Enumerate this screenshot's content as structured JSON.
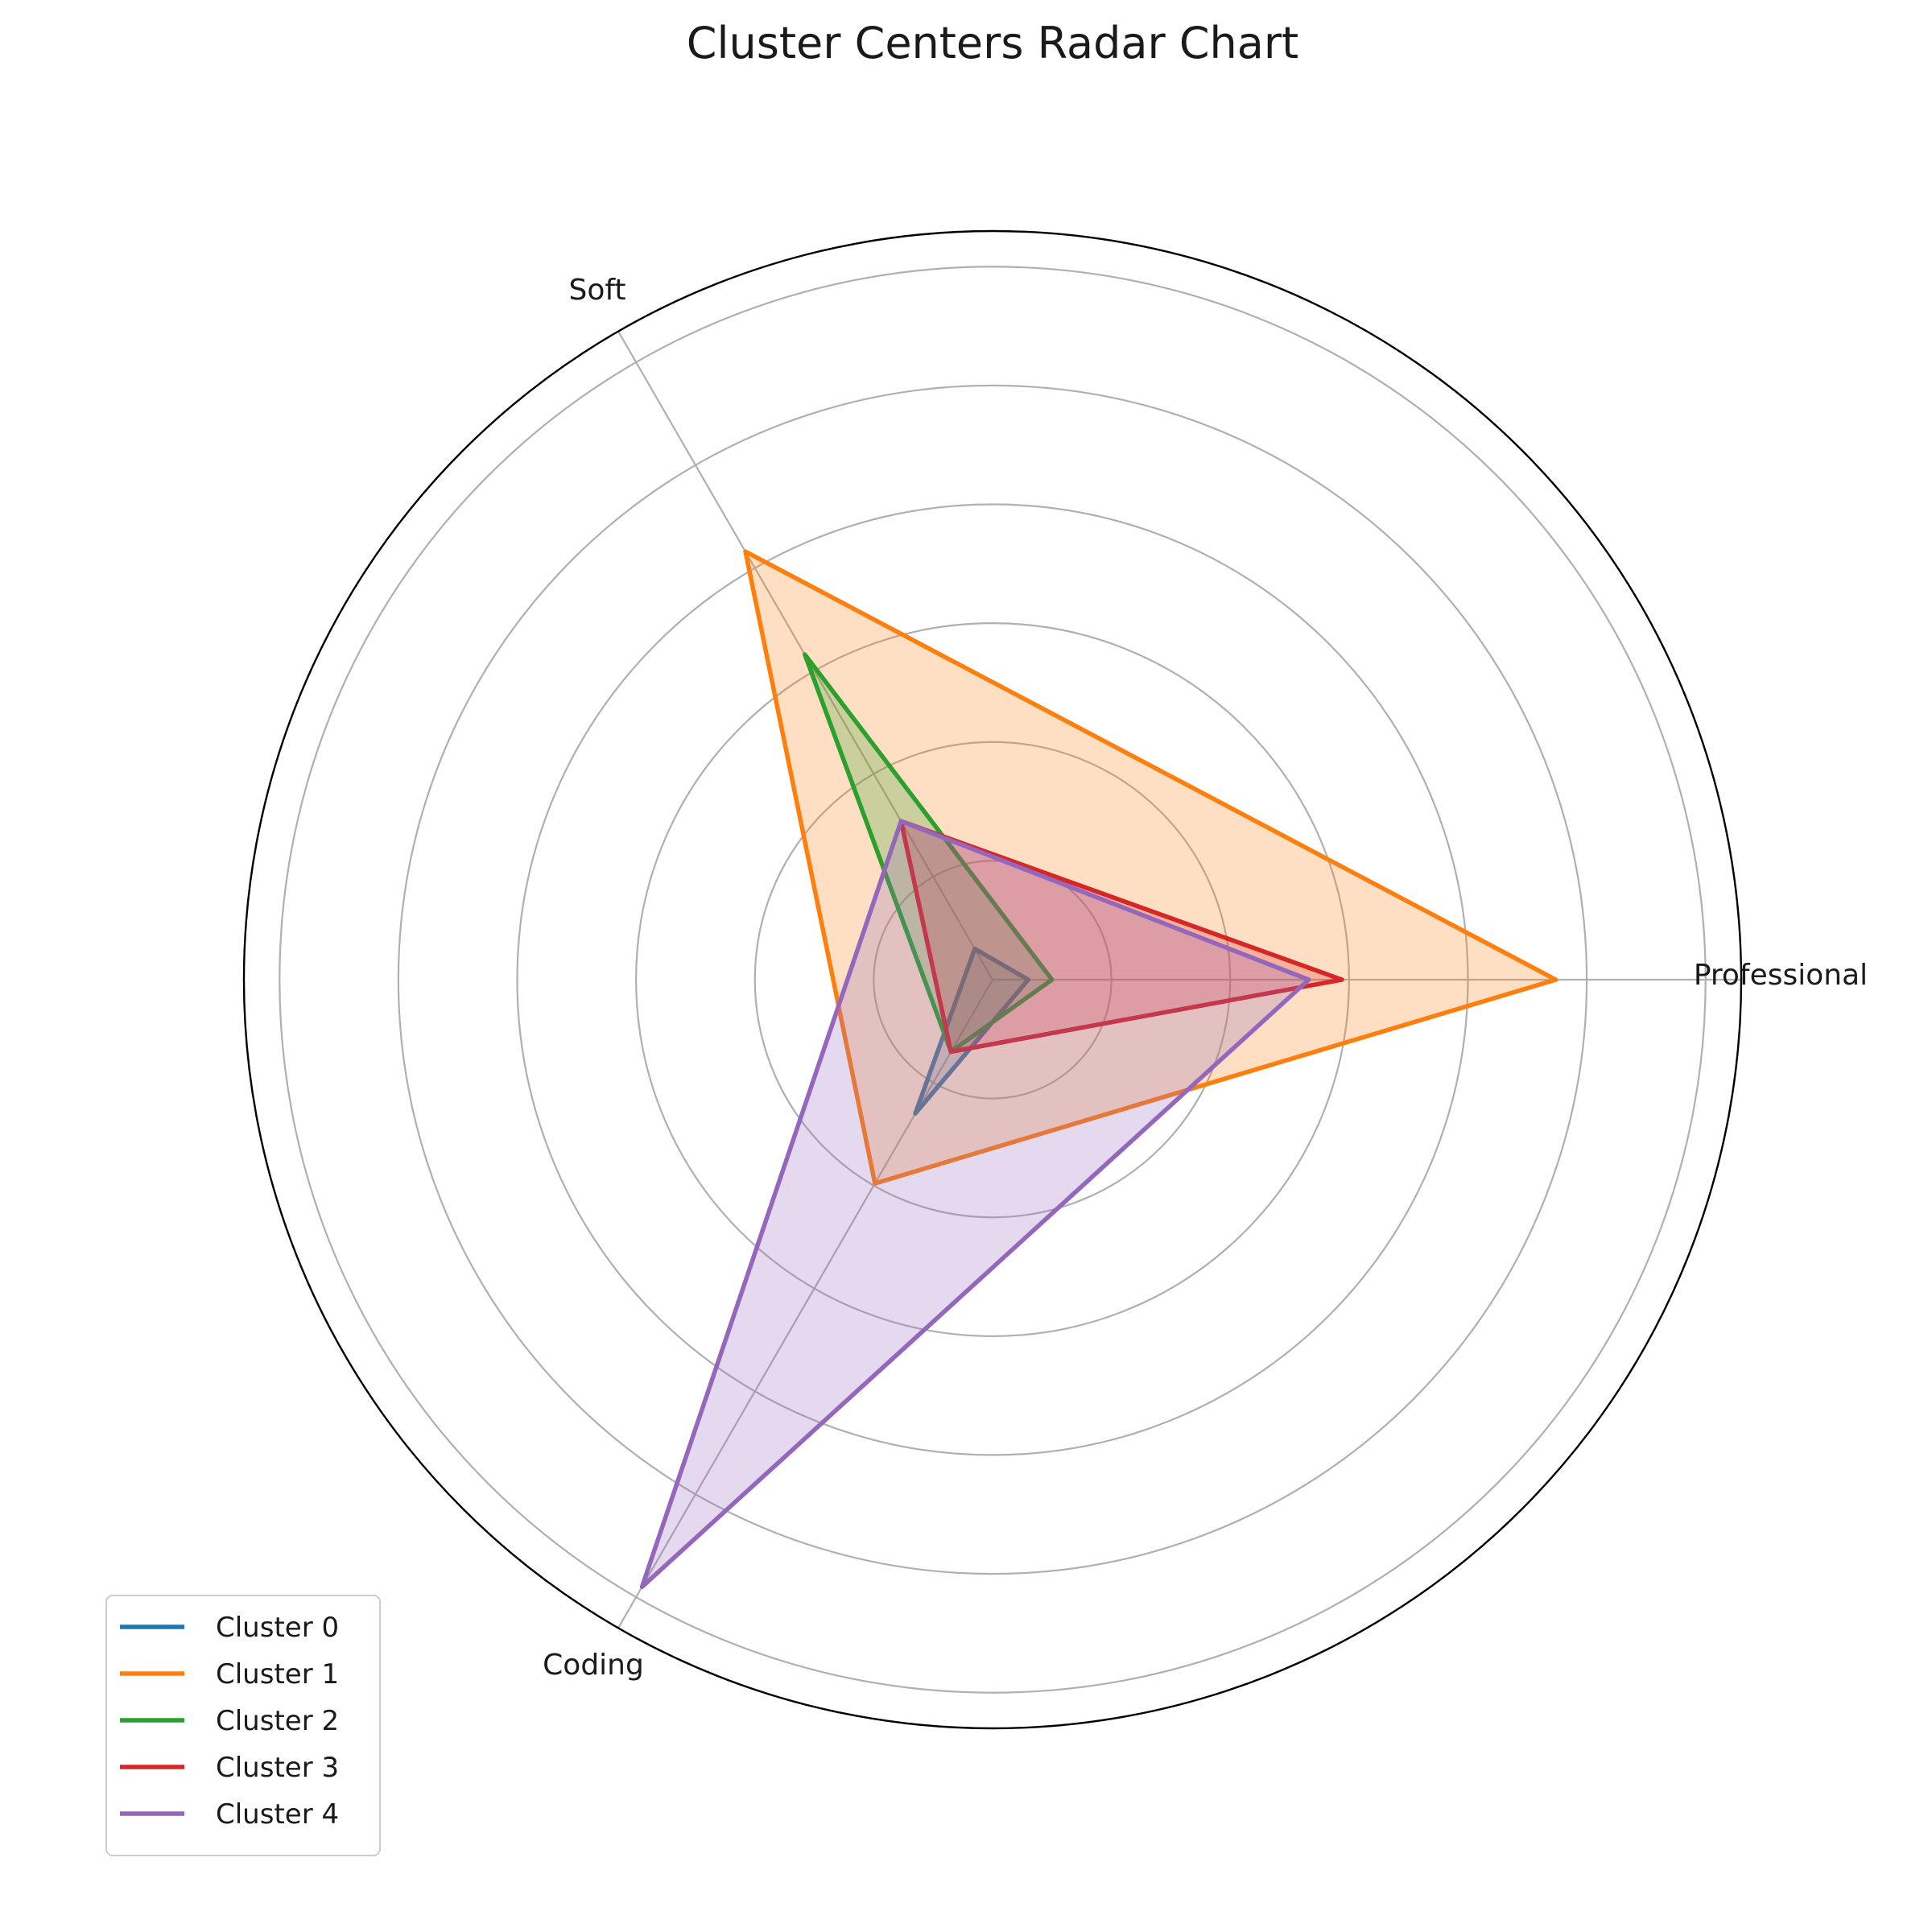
{
  "chart_data": {
    "type": "radar",
    "title": "Cluster Centers Radar Chart",
    "axes": [
      "Professional",
      "Soft",
      "Coding"
    ],
    "rlim": [
      0,
      3.15
    ],
    "gridlines": [
      0.5,
      1.0,
      1.5,
      2.0,
      2.5,
      3.0
    ],
    "grid": true,
    "legend_location": "lower-left",
    "series": [
      {
        "name": "Cluster 0",
        "color": "#1f77b4",
        "values": [
          0.15,
          0.15,
          0.65
        ]
      },
      {
        "name": "Cluster 1",
        "color": "#ff7f0e",
        "values": [
          2.37,
          2.08,
          0.99
        ]
      },
      {
        "name": "Cluster 2",
        "color": "#2ca02c",
        "values": [
          0.25,
          1.58,
          0.35
        ]
      },
      {
        "name": "Cluster 3",
        "color": "#d62728",
        "values": [
          1.47,
          0.77,
          0.35
        ]
      },
      {
        "name": "Cluster 4",
        "color": "#9467bd",
        "values": [
          1.33,
          0.77,
          2.95
        ]
      }
    ]
  }
}
